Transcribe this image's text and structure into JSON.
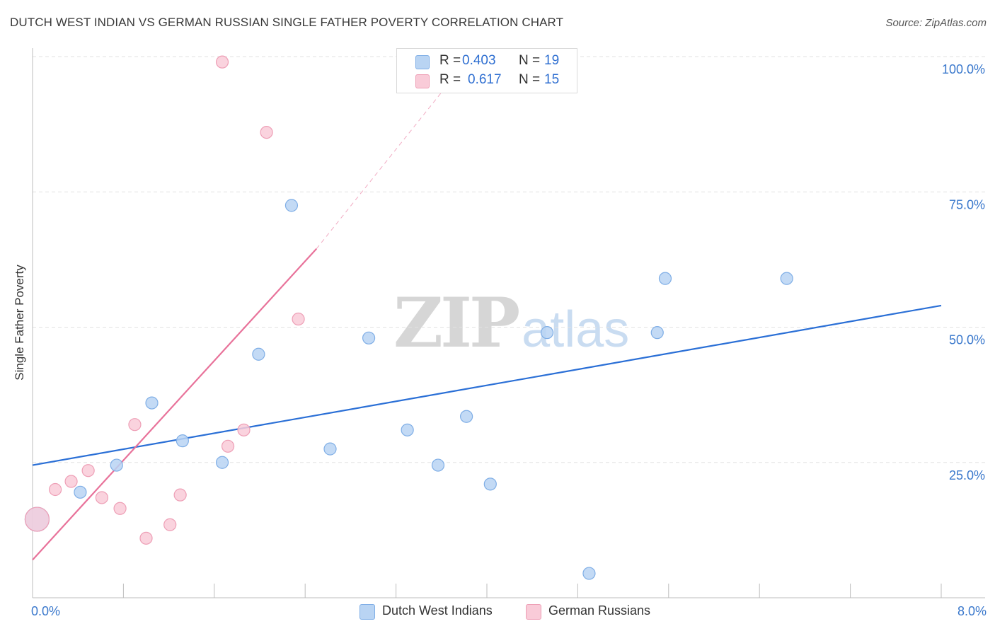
{
  "title": "DUTCH WEST INDIAN VS GERMAN RUSSIAN SINGLE FATHER POVERTY CORRELATION CHART",
  "source": "Source: ZipAtlas.com",
  "watermark": {
    "zip": "ZIP",
    "atlas": "atlas"
  },
  "legend_top": [
    {
      "r_label": "R =",
      "r_value": "0.403",
      "n_label": "N =",
      "n_value": "19"
    },
    {
      "r_label": "R =",
      "r_value": "0.617",
      "n_label": "N =",
      "n_value": "15"
    }
  ],
  "legend_bottom": [
    {
      "label": "Dutch West Indians"
    },
    {
      "label": "German Russians"
    }
  ],
  "colors": {
    "blue_fill": "#b9d4f3",
    "blue_stroke": "#7faee6",
    "blue_line": "#2a6fd6",
    "pink_fill": "#f9cbd8",
    "pink_stroke": "#ee9fb6",
    "pink_line": "#e8729a",
    "axis_text": "#3a78cc",
    "grid": "#e2e2e2"
  },
  "chart_data": {
    "type": "scatter",
    "title": "DUTCH WEST INDIAN VS GERMAN RUSSIAN SINGLE FATHER POVERTY CORRELATION CHART",
    "xlabel": "",
    "ylabel": "Single Father Poverty",
    "xlim": [
      0,
      8
    ],
    "ylim": [
      0,
      100
    ],
    "x_tick_labels": [
      "0.0%",
      "8.0%"
    ],
    "y_tick_values": [
      25,
      50,
      75,
      100
    ],
    "y_tick_labels": [
      "25.0%",
      "50.0%",
      "75.0%",
      "100.0%"
    ],
    "grid": true,
    "series": [
      {
        "name": "Dutch West Indians",
        "R": 0.403,
        "N": 19,
        "points": [
          {
            "x": 0.04,
            "y": 14.5,
            "size": "large"
          },
          {
            "x": 0.42,
            "y": 19.5
          },
          {
            "x": 0.74,
            "y": 24.5
          },
          {
            "x": 1.05,
            "y": 36
          },
          {
            "x": 1.32,
            "y": 29
          },
          {
            "x": 1.67,
            "y": 25
          },
          {
            "x": 1.99,
            "y": 45
          },
          {
            "x": 2.28,
            "y": 72.5
          },
          {
            "x": 2.62,
            "y": 27.5
          },
          {
            "x": 2.96,
            "y": 48
          },
          {
            "x": 3.3,
            "y": 31
          },
          {
            "x": 3.57,
            "y": 24.5
          },
          {
            "x": 3.82,
            "y": 33.5
          },
          {
            "x": 4.03,
            "y": 21
          },
          {
            "x": 4.53,
            "y": 49
          },
          {
            "x": 4.9,
            "y": 4.5
          },
          {
            "x": 5.5,
            "y": 49
          },
          {
            "x": 5.57,
            "y": 59
          },
          {
            "x": 6.64,
            "y": 59
          }
        ],
        "trend": {
          "x": [
            0,
            8
          ],
          "y": [
            24.5,
            54
          ]
        }
      },
      {
        "name": "German Russians",
        "R": 0.617,
        "N": 15,
        "points": [
          {
            "x": 0.04,
            "y": 14.5,
            "size": "large"
          },
          {
            "x": 0.2,
            "y": 20
          },
          {
            "x": 0.34,
            "y": 21.5
          },
          {
            "x": 0.49,
            "y": 23.5
          },
          {
            "x": 0.61,
            "y": 18.5
          },
          {
            "x": 0.77,
            "y": 16.5
          },
          {
            "x": 0.9,
            "y": 32
          },
          {
            "x": 1.0,
            "y": 11
          },
          {
            "x": 1.21,
            "y": 13.5
          },
          {
            "x": 1.3,
            "y": 19
          },
          {
            "x": 1.67,
            "y": 99
          },
          {
            "x": 1.72,
            "y": 28
          },
          {
            "x": 1.86,
            "y": 31
          },
          {
            "x": 2.06,
            "y": 86
          },
          {
            "x": 2.34,
            "y": 51.5
          }
        ],
        "trend": {
          "x": [
            0,
            2.5
          ],
          "y": [
            7,
            64.5
          ]
        },
        "trend_extension": {
          "x": [
            2.5,
            3.7
          ],
          "y": [
            64.5,
            96
          ]
        }
      }
    ]
  }
}
